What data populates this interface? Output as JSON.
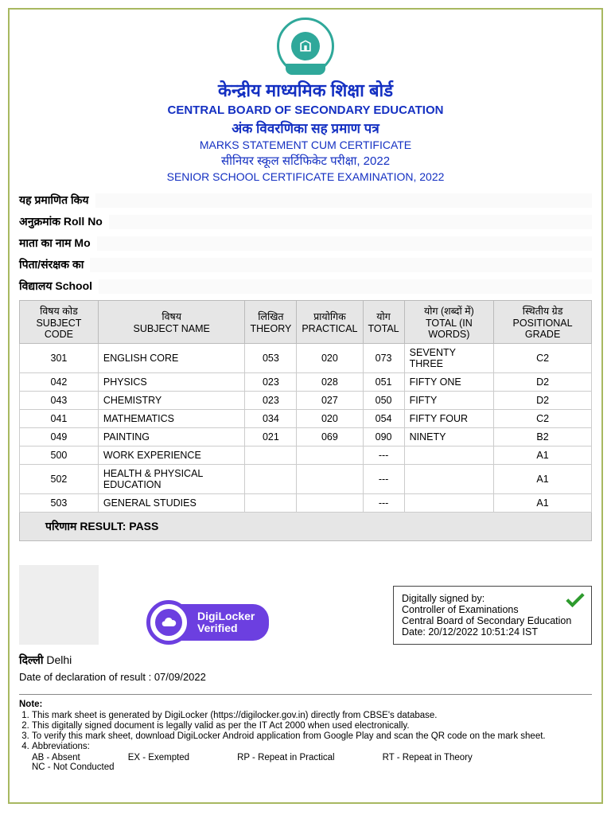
{
  "header": {
    "hindi_board": "केन्द्रीय माध्यमिक शिक्षा बोर्ड",
    "eng_board": "CENTRAL BOARD OF SECONDARY EDUCATION",
    "hindi_doc": "अंक विवरणिका सह प्रमाण पत्र",
    "eng_doc": "MARKS STATEMENT CUM CERTIFICATE",
    "hindi_exam": "सीनियर स्कूल सर्टिफिकेट परीक्षा, 2022",
    "eng_exam": "SENIOR SCHOOL CERTIFICATE EXAMINATION, 2022"
  },
  "info_labels": {
    "row1": "यह प्रमाणित किय",
    "row2": "अनुक्रमांक Roll No",
    "row3": "माता का नाम Mo",
    "row4": "पिता/संरक्षक का",
    "row5": "विद्यालय School"
  },
  "table": {
    "columns": [
      {
        "hi": "विषय कोड",
        "en": "SUBJECT CODE",
        "align": "center"
      },
      {
        "hi": "विषय",
        "en": "SUBJECT NAME",
        "align": "left"
      },
      {
        "hi": "लिखित",
        "en": "THEORY",
        "align": "center"
      },
      {
        "hi": "प्रायोगिक",
        "en": "PRACTICAL",
        "align": "center"
      },
      {
        "hi": "योग",
        "en": "TOTAL",
        "align": "center"
      },
      {
        "hi": "योग (शब्दों में)",
        "en": "TOTAL (IN WORDS)",
        "align": "left"
      },
      {
        "hi": "स्थितीय ग्रेड",
        "en": "POSITIONAL GRADE",
        "align": "center"
      }
    ],
    "rows": [
      {
        "code": "301",
        "name": "ENGLISH CORE",
        "theory": "053",
        "practical": "020",
        "total": "073",
        "words": "SEVENTY THREE",
        "grade": "C2"
      },
      {
        "code": "042",
        "name": "PHYSICS",
        "theory": "023",
        "practical": "028",
        "total": "051",
        "words": "FIFTY ONE",
        "grade": "D2"
      },
      {
        "code": "043",
        "name": "CHEMISTRY",
        "theory": "023",
        "practical": "027",
        "total": "050",
        "words": "FIFTY",
        "grade": "D2"
      },
      {
        "code": "041",
        "name": "MATHEMATICS",
        "theory": "034",
        "practical": "020",
        "total": "054",
        "words": "FIFTY FOUR",
        "grade": "C2"
      },
      {
        "code": "049",
        "name": "PAINTING",
        "theory": "021",
        "practical": "069",
        "total": "090",
        "words": "NINETY",
        "grade": "B2"
      },
      {
        "code": "500",
        "name": "WORK EXPERIENCE",
        "theory": "",
        "practical": "",
        "total": "---",
        "words": "",
        "grade": "A1"
      },
      {
        "code": "502",
        "name": "HEALTH & PHYSICAL EDUCATION",
        "theory": "",
        "practical": "",
        "total": "---",
        "words": "",
        "grade": "A1"
      },
      {
        "code": "503",
        "name": "GENERAL STUDIES",
        "theory": "",
        "practical": "",
        "total": "---",
        "words": "",
        "grade": "A1"
      }
    ]
  },
  "result": {
    "label": "परिणाम RESULT: PASS"
  },
  "digilocker": {
    "line1": "DigiLocker",
    "line2": "Verified"
  },
  "signature": {
    "l1": "Digitally signed by:",
    "l2": "Controller of Examinations",
    "l3": "Central Board of Secondary Education",
    "l4_label": "Date: ",
    "l4_val": "20/12/2022 10:51:24 IST"
  },
  "place": {
    "hi": "दिल्ली ",
    "en": "Delhi"
  },
  "declaration": {
    "label": "Date of declaration of result :  ",
    "value": "07/09/2022"
  },
  "note": {
    "title": "Note:",
    "items": [
      "This mark sheet is generated by DigiLocker (https://digilocker.gov.in) directly from CBSE's database.",
      "This digitally signed document is legally valid as per the IT Act 2000 when used electronically.",
      "To verify this mark sheet, download DigiLocker Android application from Google Play and scan the QR code on the mark sheet.",
      "Abbreviations:"
    ],
    "abbr": [
      "AB - Absent",
      "EX - Exempted",
      "RP - Repeat in Practical",
      "RT - Repeat in Theory"
    ],
    "abbr2": "NC - Not Conducted"
  },
  "colors": {
    "border": "#a8b860",
    "heading_blue": "#1430c2",
    "teal": "#2fa89a",
    "digi_purple": "#6c3fe0",
    "table_header_bg": "#e6e6e6",
    "check_green": "#2e9b2e"
  }
}
